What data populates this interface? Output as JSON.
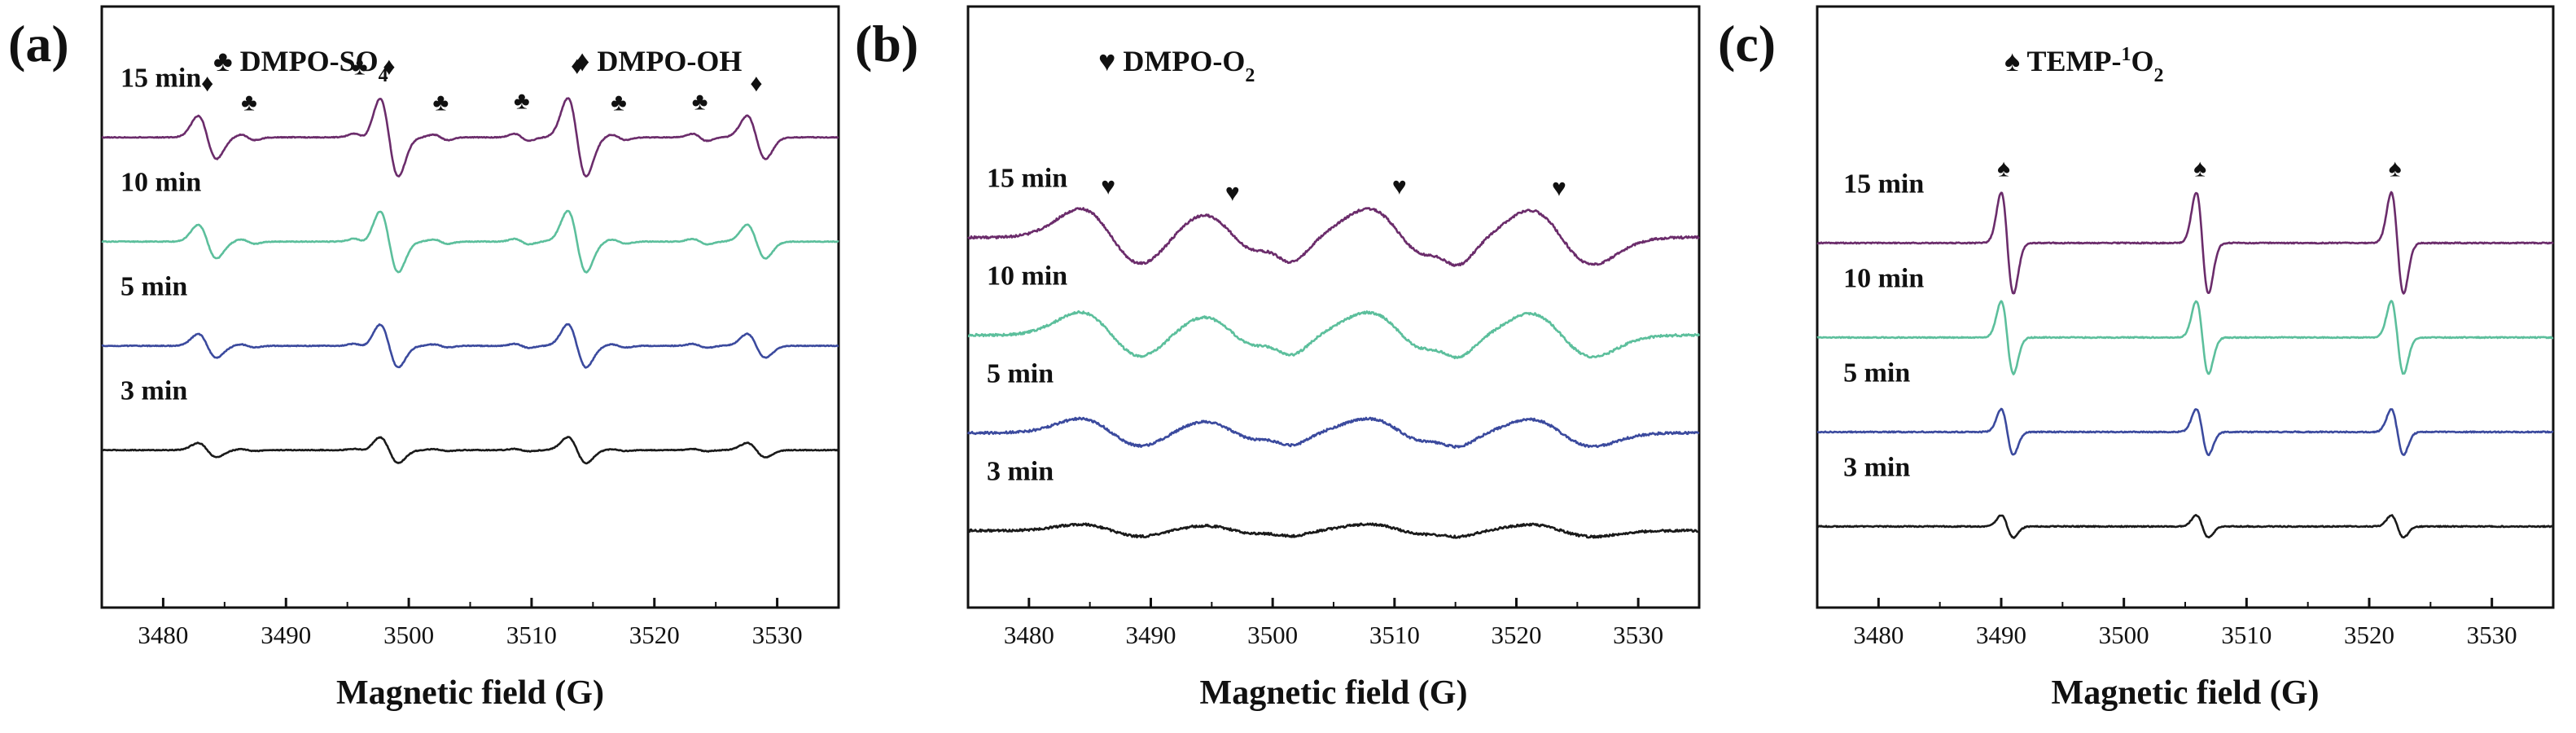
{
  "chart_data": [
    {
      "type": "line",
      "panel_label": "(a)",
      "xlabel": "Magnetic field (G)",
      "ylabel": "",
      "xlim": [
        3475,
        3535
      ],
      "xticks": [
        "3480",
        "3490",
        "3500",
        "3510",
        "3520",
        "3530"
      ],
      "legend": [
        {
          "symbol": "♣",
          "label": "DMPO-SO",
          "sub": "4"
        },
        {
          "symbol": "♦",
          "label": "DMPO-OH",
          "sub": ""
        }
      ],
      "series": [
        {
          "name": "3 min",
          "color": "#1a1a1a",
          "offset": 0,
          "scale": 0.33
        },
        {
          "name": "5 min",
          "color": "#3b4a9e",
          "offset": 1,
          "scale": 0.55
        },
        {
          "name": "10 min",
          "color": "#5cbf9c",
          "offset": 2,
          "scale": 0.78
        },
        {
          "name": "15 min",
          "color": "#6b2c6b",
          "offset": 3,
          "scale": 1.0
        }
      ],
      "peaks": [
        {
          "pos": 3483.6,
          "amp": 0.55,
          "width": 0.75
        },
        {
          "pos": 3498.4,
          "amp": 1.0,
          "width": 0.75
        },
        {
          "pos": 3513.7,
          "amp": 1.0,
          "width": 0.75
        },
        {
          "pos": 3528.3,
          "amp": 0.55,
          "width": 0.75
        },
        {
          "pos": 3486.9,
          "amp": 0.07,
          "width": 0.6
        },
        {
          "pos": 3496.1,
          "amp": 0.09,
          "width": 0.6
        },
        {
          "pos": 3502.6,
          "amp": 0.07,
          "width": 0.6
        },
        {
          "pos": 3509.2,
          "amp": 0.09,
          "width": 0.6
        },
        {
          "pos": 3517.1,
          "amp": 0.07,
          "width": 0.6
        },
        {
          "pos": 3523.7,
          "amp": 0.09,
          "width": 0.6
        }
      ],
      "markers": [
        {
          "symbol": "♦",
          "x": 3483.6
        },
        {
          "symbol": "♣",
          "x": 3487.0
        },
        {
          "symbol": "♣",
          "x": 3496.0
        },
        {
          "symbol": "♦",
          "x": 3498.4
        },
        {
          "symbol": "♣",
          "x": 3502.6
        },
        {
          "symbol": "♣",
          "x": 3509.2
        },
        {
          "symbol": "♦",
          "x": 3513.7
        },
        {
          "symbol": "♣",
          "x": 3517.1
        },
        {
          "symbol": "♣",
          "x": 3523.7
        },
        {
          "symbol": "♦",
          "x": 3528.3
        }
      ]
    },
    {
      "type": "line",
      "panel_label": "(b)",
      "xlabel": "Magnetic field (G)",
      "ylabel": "",
      "xlim": [
        3475,
        3535
      ],
      "xticks": [
        "3480",
        "3490",
        "3500",
        "3510",
        "3520",
        "3530"
      ],
      "legend": [
        {
          "symbol": "♥",
          "label": "DMPO-O",
          "sub": "2"
        }
      ],
      "series": [
        {
          "name": "3 min",
          "color": "#1a1a1a",
          "offset": 0,
          "scale": 0.22
        },
        {
          "name": "5 min",
          "color": "#3b4a9e",
          "offset": 1,
          "scale": 0.5
        },
        {
          "name": "10 min",
          "color": "#5cbf9c",
          "offset": 2,
          "scale": 0.8
        },
        {
          "name": "15 min",
          "color": "#6b2c6b",
          "offset": 3,
          "scale": 1.0
        }
      ],
      "peaks": [
        {
          "pos": 3486.8,
          "amp": 1.0,
          "width": 2.6
        },
        {
          "pos": 3496.9,
          "amp": 0.85,
          "width": 2.8
        },
        {
          "pos": 3500.7,
          "amp": 0.35,
          "width": 1.3
        },
        {
          "pos": 3510.6,
          "amp": 1.0,
          "width": 2.8
        },
        {
          "pos": 3514.4,
          "amp": 0.35,
          "width": 1.3
        },
        {
          "pos": 3523.7,
          "amp": 0.95,
          "width": 2.6
        }
      ],
      "markers": [
        {
          "symbol": "♥",
          "x": 3486.5
        },
        {
          "symbol": "♥",
          "x": 3496.7
        },
        {
          "symbol": "♥",
          "x": 3510.4
        },
        {
          "symbol": "♥",
          "x": 3523.5
        }
      ]
    },
    {
      "type": "line",
      "panel_label": "(c)",
      "xlabel": "Magnetic field (G)",
      "ylabel": "",
      "xlim": [
        3475,
        3535
      ],
      "xticks": [
        "3480",
        "3490",
        "3500",
        "3510",
        "3520",
        "3530"
      ],
      "legend": [
        {
          "symbol": "♠",
          "label": "TEMP-",
          "sup": "1",
          "label2": "O",
          "sub": "2"
        }
      ],
      "series": [
        {
          "name": "3 min",
          "color": "#1a1a1a",
          "offset": 0,
          "scale": 0.22
        },
        {
          "name": "5 min",
          "color": "#3b4a9e",
          "offset": 1,
          "scale": 0.45
        },
        {
          "name": "10 min",
          "color": "#5cbf9c",
          "offset": 2,
          "scale": 0.72
        },
        {
          "name": "15 min",
          "color": "#6b2c6b",
          "offset": 3,
          "scale": 1.0
        }
      ],
      "peaks": [
        {
          "pos": 3490.5,
          "amp": 1.0,
          "width": 0.5
        },
        {
          "pos": 3506.4,
          "amp": 1.0,
          "width": 0.5
        },
        {
          "pos": 3522.3,
          "amp": 1.0,
          "width": 0.5
        }
      ],
      "markers": [
        {
          "symbol": "♠",
          "x": 3490.2
        },
        {
          "symbol": "♠",
          "x": 3506.2
        },
        {
          "symbol": "♠",
          "x": 3522.1
        }
      ]
    }
  ]
}
